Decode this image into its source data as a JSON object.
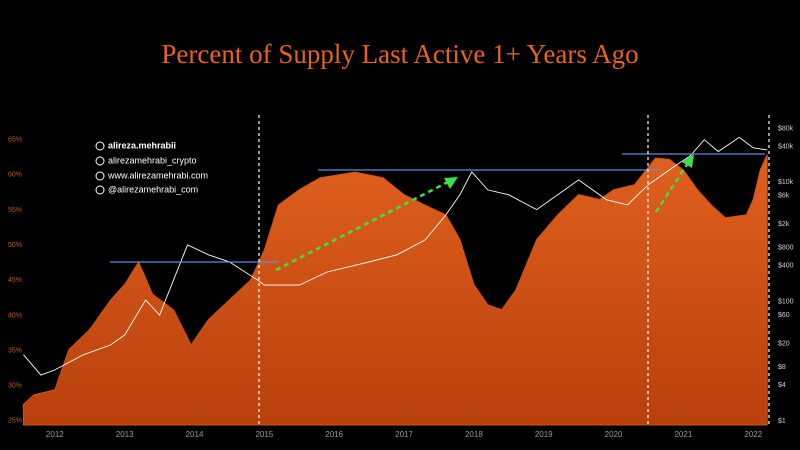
{
  "chart_data": {
    "type": "area",
    "title": "Percent of Supply Last Active 1+ Years Ago",
    "annotations": [
      "alireza.mehrabii",
      "alirezamehrabi_crypto",
      "www.alirezamehrabi.com",
      "@alirezamehrabi_com"
    ],
    "xlim": [
      2011.53,
      2022.24
    ],
    "xticks": [
      2012,
      2013,
      2014,
      2015,
      2016,
      2017,
      2018,
      2019,
      2020,
      2021,
      2022
    ],
    "ylim": [
      24.4,
      68.1
    ],
    "yticks": [
      {
        "value": 25,
        "label": "25%"
      },
      {
        "value": 30,
        "label": "30%"
      },
      {
        "value": 35,
        "label": "35%"
      },
      {
        "value": 40,
        "label": "40%"
      },
      {
        "value": 45,
        "label": "45%"
      },
      {
        "value": 50,
        "label": "50%"
      },
      {
        "value": 55,
        "label": "55%"
      },
      {
        "value": 60,
        "label": "60%"
      },
      {
        "value": 65,
        "label": "65%"
      }
    ],
    "y2lim": [
      0.86,
      120000
    ],
    "y2scale": "log",
    "y2ticks": [
      {
        "value": 80000,
        "label": "$80k"
      },
      {
        "value": 40000,
        "label": "$40k"
      },
      {
        "value": 10000,
        "label": "$10k"
      },
      {
        "value": 6000,
        "label": "$6k"
      },
      {
        "value": 2000,
        "label": "$2k"
      },
      {
        "value": 800,
        "label": "$800"
      },
      {
        "value": 400,
        "label": "$400"
      },
      {
        "value": 100,
        "label": "$100"
      },
      {
        "value": 60,
        "label": "$60"
      },
      {
        "value": 20,
        "label": "$20"
      },
      {
        "value": 8,
        "label": "$8"
      },
      {
        "value": 4,
        "label": "$4"
      },
      {
        "value": 1,
        "label": "$1"
      }
    ],
    "series": [
      {
        "type": "area",
        "color": "#d2521a",
        "x": [
          2011.55,
          2011.7,
          2012.0,
          2012.2,
          2012.5,
          2012.8,
          2013.0,
          2013.2,
          2013.4,
          2013.7,
          2013.95,
          2014.2,
          2014.5,
          2014.8,
          2015.0,
          2015.2,
          2015.5,
          2015.8,
          2016.3,
          2016.7,
          2017.0,
          2017.3,
          2017.6,
          2017.8,
          2018.0,
          2018.2,
          2018.4,
          2018.6,
          2018.9,
          2019.2,
          2019.5,
          2019.8,
          2020.0,
          2020.3,
          2020.6,
          2020.8,
          2021.0,
          2021.2,
          2021.4,
          2021.6,
          2021.9,
          2022.0,
          2022.1,
          2022.2
        ],
        "values": [
          27.3,
          28.7,
          29.4,
          35.1,
          38,
          42.2,
          44.4,
          47.6,
          43,
          40.8,
          35.8,
          39.4,
          42.2,
          45,
          49.3,
          55.7,
          57.9,
          59.6,
          60.4,
          59.6,
          57.2,
          55.7,
          54.3,
          50.8,
          44.4,
          41.5,
          40.8,
          43.6,
          50.8,
          54.3,
          57.2,
          56.5,
          57.9,
          58.6,
          62.4,
          62.2,
          60.7,
          57.9,
          55.7,
          53.9,
          54.3,
          56.5,
          60.7,
          62.9
        ]
      },
      {
        "type": "line",
        "axis": "y2",
        "color": "#ffffff",
        "x": [
          2011.55,
          2011.8,
          2012.0,
          2012.4,
          2012.8,
          2013.0,
          2013.3,
          2013.5,
          2013.9,
          2014.2,
          2014.5,
          2014.9,
          2015.0,
          2015.5,
          2015.9,
          2016.5,
          2016.9,
          2017.3,
          2017.6,
          2017.8,
          2017.97,
          2018.2,
          2018.5,
          2018.9,
          2019.5,
          2019.9,
          2020.2,
          2020.5,
          2020.9,
          2021.1,
          2021.3,
          2021.5,
          2021.8,
          2022.0,
          2022.2
        ],
        "values": [
          13,
          5.9,
          7.2,
          12.8,
          18.9,
          27.7,
          107,
          60,
          895,
          613,
          465,
          232,
          190,
          190,
          315,
          465,
          613,
          1085,
          2850,
          6200,
          15000,
          7500,
          6200,
          3500,
          11000,
          5100,
          4200,
          9200,
          19600,
          28000,
          52000,
          33000,
          57000,
          38000,
          35000
        ]
      }
    ]
  }
}
